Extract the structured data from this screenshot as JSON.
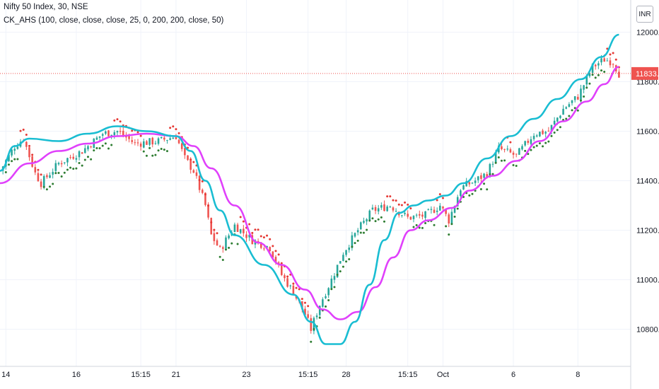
{
  "header": {
    "title": "Nifty 50 Index, 30, NSE",
    "indicator": "CK_AHS (100, close, close, close, 25, 0, 200, 200, close, 50)",
    "currency": "INR"
  },
  "colors": {
    "bull": "#26a69a",
    "bear": "#ef5350",
    "cyan_line": "#19bdd2",
    "magenta_line": "#e040fb",
    "dot_green": "#2e7d32",
    "dot_red": "#e53935",
    "grid": "#f0f3fa",
    "price_tag": "#ef5350"
  },
  "chart_data": {
    "type": "line",
    "title": "Nifty 50 Index, 30, NSE",
    "x_ticks": [
      "14",
      "16",
      "15:15",
      "21",
      "23",
      "15:15",
      "28",
      "15:15",
      "Oct",
      "6",
      "8"
    ],
    "y_ticks": [
      "12000.00",
      "11800.00",
      "11600.00",
      "11400.00",
      "11200.00",
      "11000.00",
      "10800.00"
    ],
    "ylim": [
      10650,
      12130
    ],
    "last_price": "11833.15",
    "price_line_style": "dotted",
    "candles_close_path": [
      {
        "x": 0,
        "y": 11440
      },
      {
        "x": 5,
        "y": 11540
      },
      {
        "x": 8,
        "y": 11570
      },
      {
        "x": 12,
        "y": 11430
      },
      {
        "x": 14,
        "y": 11390
      },
      {
        "x": 20,
        "y": 11470
      },
      {
        "x": 28,
        "y": 11520
      },
      {
        "x": 35,
        "y": 11590
      },
      {
        "x": 40,
        "y": 11600
      },
      {
        "x": 46,
        "y": 11550
      },
      {
        "x": 54,
        "y": 11560
      },
      {
        "x": 60,
        "y": 11580
      },
      {
        "x": 63,
        "y": 11490
      },
      {
        "x": 66,
        "y": 11440
      },
      {
        "x": 70,
        "y": 11300
      },
      {
        "x": 72,
        "y": 11180
      },
      {
        "x": 75,
        "y": 11120
      },
      {
        "x": 80,
        "y": 11220
      },
      {
        "x": 86,
        "y": 11160
      },
      {
        "x": 92,
        "y": 11130
      },
      {
        "x": 96,
        "y": 11020
      },
      {
        "x": 100,
        "y": 10950
      },
      {
        "x": 104,
        "y": 10860
      },
      {
        "x": 106,
        "y": 10800
      },
      {
        "x": 109,
        "y": 10900
      },
      {
        "x": 113,
        "y": 11000
      },
      {
        "x": 117,
        "y": 11110
      },
      {
        "x": 122,
        "y": 11200
      },
      {
        "x": 127,
        "y": 11280
      },
      {
        "x": 133,
        "y": 11300
      },
      {
        "x": 139,
        "y": 11250
      },
      {
        "x": 145,
        "y": 11260
      },
      {
        "x": 150,
        "y": 11300
      },
      {
        "x": 153,
        "y": 11240
      },
      {
        "x": 157,
        "y": 11370
      },
      {
        "x": 162,
        "y": 11400
      },
      {
        "x": 166,
        "y": 11430
      },
      {
        "x": 170,
        "y": 11530
      },
      {
        "x": 176,
        "y": 11500
      },
      {
        "x": 182,
        "y": 11590
      },
      {
        "x": 187,
        "y": 11600
      },
      {
        "x": 192,
        "y": 11690
      },
      {
        "x": 197,
        "y": 11740
      },
      {
        "x": 202,
        "y": 11860
      },
      {
        "x": 206,
        "y": 11890
      },
      {
        "x": 209,
        "y": 11880
      },
      {
        "x": 211,
        "y": 11833
      }
    ],
    "series": [
      {
        "key": "cyan",
        "points": [
          {
            "x": 0,
            "y": 11440
          },
          {
            "x": 5,
            "y": 11540
          },
          {
            "x": 10,
            "y": 11570
          },
          {
            "x": 20,
            "y": 11560
          },
          {
            "x": 30,
            "y": 11590
          },
          {
            "x": 40,
            "y": 11620
          },
          {
            "x": 50,
            "y": 11600
          },
          {
            "x": 60,
            "y": 11580
          },
          {
            "x": 65,
            "y": 11520
          },
          {
            "x": 70,
            "y": 11400
          },
          {
            "x": 75,
            "y": 11280
          },
          {
            "x": 80,
            "y": 11180
          },
          {
            "x": 90,
            "y": 11060
          },
          {
            "x": 100,
            "y": 10940
          },
          {
            "x": 106,
            "y": 10830
          },
          {
            "x": 111,
            "y": 10740
          },
          {
            "x": 116,
            "y": 10740
          },
          {
            "x": 121,
            "y": 10830
          },
          {
            "x": 126,
            "y": 10980
          },
          {
            "x": 131,
            "y": 11160
          },
          {
            "x": 136,
            "y": 11270
          },
          {
            "x": 141,
            "y": 11300
          },
          {
            "x": 146,
            "y": 11320
          },
          {
            "x": 152,
            "y": 11340
          },
          {
            "x": 158,
            "y": 11390
          },
          {
            "x": 166,
            "y": 11490
          },
          {
            "x": 174,
            "y": 11580
          },
          {
            "x": 182,
            "y": 11650
          },
          {
            "x": 190,
            "y": 11730
          },
          {
            "x": 198,
            "y": 11810
          },
          {
            "x": 205,
            "y": 11900
          },
          {
            "x": 211,
            "y": 11990
          }
        ]
      },
      {
        "key": "magenta",
        "points": [
          {
            "x": 0,
            "y": 11390
          },
          {
            "x": 10,
            "y": 11470
          },
          {
            "x": 20,
            "y": 11520
          },
          {
            "x": 30,
            "y": 11550
          },
          {
            "x": 40,
            "y": 11580
          },
          {
            "x": 50,
            "y": 11590
          },
          {
            "x": 60,
            "y": 11580
          },
          {
            "x": 66,
            "y": 11540
          },
          {
            "x": 72,
            "y": 11450
          },
          {
            "x": 80,
            "y": 11300
          },
          {
            "x": 88,
            "y": 11150
          },
          {
            "x": 96,
            "y": 11060
          },
          {
            "x": 104,
            "y": 10960
          },
          {
            "x": 110,
            "y": 10880
          },
          {
            "x": 116,
            "y": 10840
          },
          {
            "x": 122,
            "y": 10870
          },
          {
            "x": 128,
            "y": 10970
          },
          {
            "x": 134,
            "y": 11090
          },
          {
            "x": 140,
            "y": 11200
          },
          {
            "x": 146,
            "y": 11240
          },
          {
            "x": 154,
            "y": 11290
          },
          {
            "x": 160,
            "y": 11360
          },
          {
            "x": 168,
            "y": 11420
          },
          {
            "x": 176,
            "y": 11480
          },
          {
            "x": 184,
            "y": 11560
          },
          {
            "x": 192,
            "y": 11640
          },
          {
            "x": 200,
            "y": 11720
          },
          {
            "x": 206,
            "y": 11790
          },
          {
            "x": 211,
            "y": 11860
          }
        ]
      }
    ]
  }
}
